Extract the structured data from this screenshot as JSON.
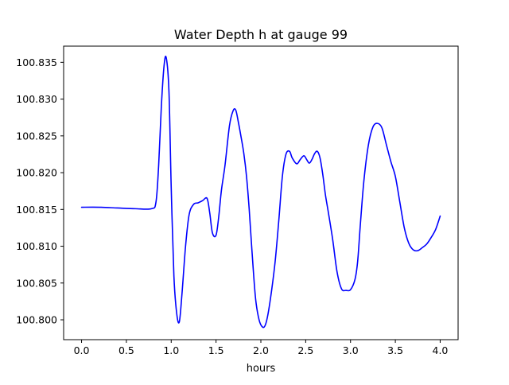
{
  "chart_data": {
    "type": "line",
    "title": "Water Depth h at gauge 99",
    "xlabel": "hours",
    "ylabel": "",
    "xlim": [
      -0.2,
      4.2
    ],
    "ylim": [
      100.7973,
      100.8372
    ],
    "xticks": [
      0.0,
      0.5,
      1.0,
      1.5,
      2.0,
      2.5,
      3.0,
      3.5,
      4.0
    ],
    "xtick_labels": [
      "0.0",
      "0.5",
      "1.0",
      "1.5",
      "2.0",
      "2.5",
      "3.0",
      "3.5",
      "4.0"
    ],
    "yticks": [
      100.8,
      100.805,
      100.81,
      100.815,
      100.82,
      100.825,
      100.83,
      100.835
    ],
    "ytick_labels": [
      "100.800",
      "100.805",
      "100.810",
      "100.815",
      "100.820",
      "100.825",
      "100.830",
      "100.835"
    ],
    "grid": false,
    "series": [
      {
        "name": "",
        "color": "#0000ff",
        "x": [
          0.0,
          0.2,
          0.4,
          0.6,
          0.78,
          0.83,
          0.86,
          0.89,
          0.92,
          0.945,
          0.975,
          1.0,
          1.03,
          1.06,
          1.09,
          1.12,
          1.16,
          1.2,
          1.25,
          1.3,
          1.35,
          1.4,
          1.43,
          1.46,
          1.5,
          1.53,
          1.56,
          1.6,
          1.65,
          1.69,
          1.72,
          1.75,
          1.78,
          1.81,
          1.84,
          1.87,
          1.9,
          1.94,
          1.98,
          2.02,
          2.05,
          2.08,
          2.12,
          2.16,
          2.2,
          2.24,
          2.28,
          2.32,
          2.35,
          2.4,
          2.44,
          2.48,
          2.51,
          2.54,
          2.57,
          2.6,
          2.63,
          2.66,
          2.69,
          2.72,
          2.75,
          2.8,
          2.85,
          2.9,
          2.95,
          3.0,
          3.05,
          3.08,
          3.11,
          3.15,
          3.2,
          3.25,
          3.3,
          3.35,
          3.4,
          3.45,
          3.5,
          3.55,
          3.6,
          3.65,
          3.7,
          3.75,
          3.8,
          3.85,
          3.9,
          3.95,
          4.0
        ],
        "y": [
          100.8153,
          100.8153,
          100.8152,
          100.8151,
          100.8151,
          100.816,
          100.821,
          100.829,
          100.8345,
          100.8356,
          100.831,
          100.818,
          100.806,
          100.801,
          100.7997,
          100.8035,
          100.81,
          100.8143,
          100.8157,
          100.8159,
          100.8162,
          100.8165,
          100.8145,
          100.8118,
          100.8115,
          100.814,
          100.8176,
          100.821,
          100.8264,
          100.8284,
          100.8285,
          100.8268,
          100.8248,
          100.8226,
          100.8195,
          100.815,
          100.8095,
          100.803,
          100.8,
          100.799,
          100.7993,
          100.8008,
          100.804,
          100.808,
          100.8135,
          100.8195,
          100.8225,
          100.8229,
          100.822,
          100.8212,
          100.8218,
          100.8223,
          100.8218,
          100.8213,
          100.8218,
          100.8226,
          100.8229,
          100.822,
          100.8198,
          100.817,
          100.8148,
          100.811,
          100.8065,
          100.8042,
          100.804,
          100.8041,
          100.8055,
          100.808,
          100.813,
          100.819,
          100.8238,
          100.8262,
          100.8267,
          100.8261,
          100.8238,
          100.8215,
          100.8195,
          100.816,
          100.8125,
          100.8104,
          100.8095,
          100.8094,
          100.8098,
          100.8103,
          100.8112,
          100.8123,
          100.8141
        ]
      }
    ]
  }
}
